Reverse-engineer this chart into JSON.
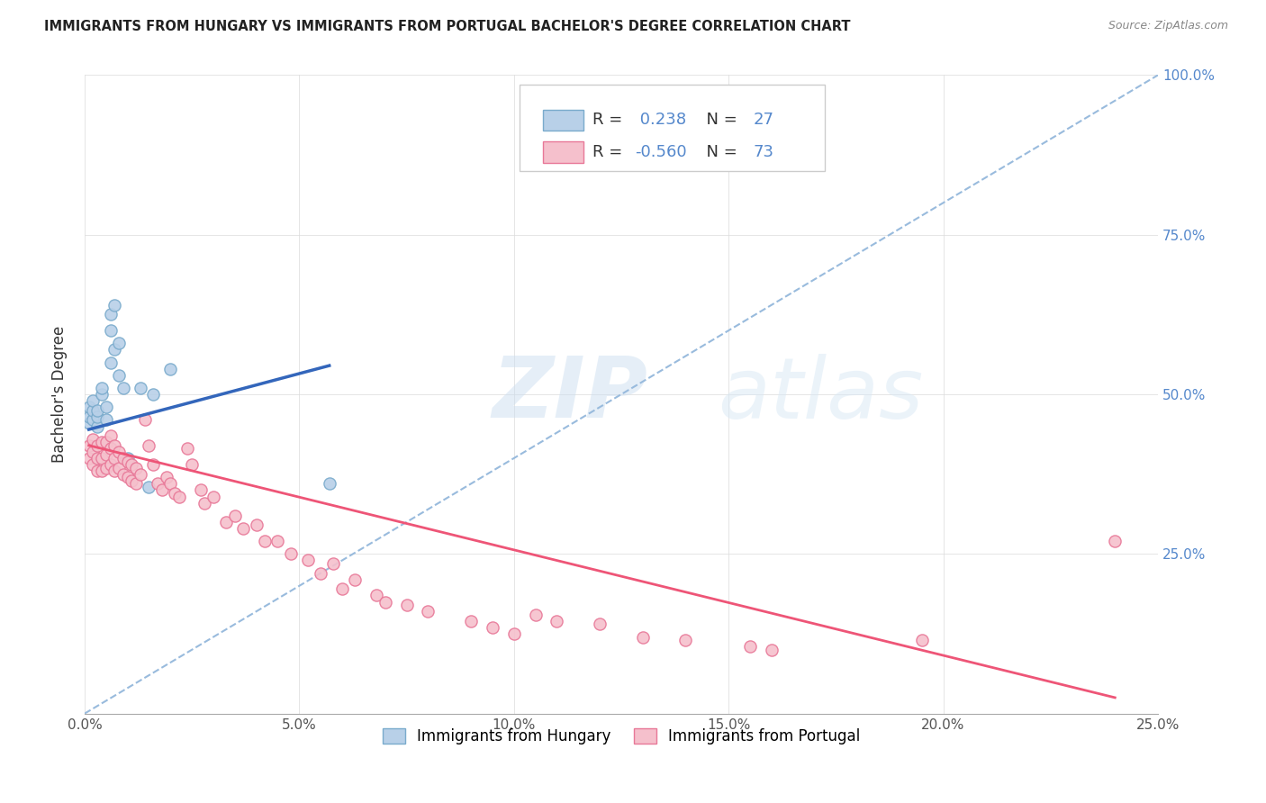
{
  "title": "IMMIGRANTS FROM HUNGARY VS IMMIGRANTS FROM PORTUGAL BACHELOR'S DEGREE CORRELATION CHART",
  "source": "Source: ZipAtlas.com",
  "ylabel": "Bachelor's Degree",
  "xlim": [
    0.0,
    0.25
  ],
  "ylim": [
    0.0,
    1.0
  ],
  "x_tick_labels": [
    "0.0%",
    "",
    "",
    "",
    "",
    "5.0%",
    "",
    "",
    "",
    "",
    "10.0%",
    "",
    "",
    "",
    "",
    "15.0%",
    "",
    "",
    "",
    "",
    "20.0%",
    "",
    "",
    "",
    "",
    "25.0%"
  ],
  "x_tick_vals": [
    0.0,
    0.01,
    0.02,
    0.03,
    0.04,
    0.05,
    0.06,
    0.07,
    0.08,
    0.09,
    0.1,
    0.11,
    0.12,
    0.13,
    0.14,
    0.15,
    0.16,
    0.17,
    0.18,
    0.19,
    0.2,
    0.21,
    0.22,
    0.23,
    0.24,
    0.25
  ],
  "x_major_ticks": [
    0.0,
    0.05,
    0.1,
    0.15,
    0.2,
    0.25
  ],
  "x_major_labels": [
    "0.0%",
    "5.0%",
    "10.0%",
    "15.0%",
    "20.0%",
    "25.0%"
  ],
  "y_tick_vals_right": [
    0.25,
    0.5,
    0.75,
    1.0
  ],
  "y_tick_labels_right": [
    "25.0%",
    "50.0%",
    "75.0%",
    "100.0%"
  ],
  "hungary_color": "#b8d0e8",
  "hungary_edge_color": "#7aabcc",
  "portugal_color": "#f5c0cc",
  "portugal_edge_color": "#e87898",
  "hungary_R": 0.238,
  "hungary_N": 27,
  "portugal_R": -0.56,
  "portugal_N": 73,
  "hungary_trend_color": "#3366bb",
  "portugal_trend_color": "#ee5577",
  "dashed_line_color": "#99bbdd",
  "watermark_zip": "ZIP",
  "watermark_atlas": "atlas",
  "background_color": "#ffffff",
  "hungary_scatter_x": [
    0.001,
    0.001,
    0.001,
    0.002,
    0.002,
    0.002,
    0.003,
    0.003,
    0.003,
    0.004,
    0.004,
    0.005,
    0.005,
    0.006,
    0.006,
    0.006,
    0.007,
    0.007,
    0.008,
    0.008,
    0.009,
    0.01,
    0.013,
    0.015,
    0.016,
    0.02,
    0.057
  ],
  "hungary_scatter_y": [
    0.455,
    0.465,
    0.48,
    0.46,
    0.475,
    0.49,
    0.45,
    0.465,
    0.475,
    0.5,
    0.51,
    0.46,
    0.48,
    0.55,
    0.6,
    0.625,
    0.57,
    0.64,
    0.53,
    0.58,
    0.51,
    0.4,
    0.51,
    0.355,
    0.5,
    0.54,
    0.36
  ],
  "portugal_scatter_x": [
    0.001,
    0.001,
    0.002,
    0.002,
    0.002,
    0.003,
    0.003,
    0.003,
    0.004,
    0.004,
    0.004,
    0.005,
    0.005,
    0.005,
    0.006,
    0.006,
    0.006,
    0.007,
    0.007,
    0.007,
    0.008,
    0.008,
    0.009,
    0.009,
    0.01,
    0.01,
    0.011,
    0.011,
    0.012,
    0.012,
    0.013,
    0.014,
    0.015,
    0.016,
    0.017,
    0.018,
    0.019,
    0.02,
    0.021,
    0.022,
    0.024,
    0.025,
    0.027,
    0.028,
    0.03,
    0.033,
    0.035,
    0.037,
    0.04,
    0.042,
    0.045,
    0.048,
    0.052,
    0.055,
    0.058,
    0.06,
    0.063,
    0.068,
    0.07,
    0.075,
    0.08,
    0.09,
    0.095,
    0.1,
    0.105,
    0.11,
    0.12,
    0.13,
    0.14,
    0.155,
    0.16,
    0.195,
    0.24
  ],
  "portugal_scatter_y": [
    0.4,
    0.42,
    0.39,
    0.41,
    0.43,
    0.38,
    0.4,
    0.42,
    0.38,
    0.4,
    0.425,
    0.385,
    0.405,
    0.425,
    0.39,
    0.415,
    0.435,
    0.38,
    0.4,
    0.42,
    0.385,
    0.41,
    0.375,
    0.4,
    0.37,
    0.395,
    0.365,
    0.39,
    0.36,
    0.385,
    0.375,
    0.46,
    0.42,
    0.39,
    0.36,
    0.35,
    0.37,
    0.36,
    0.345,
    0.34,
    0.415,
    0.39,
    0.35,
    0.33,
    0.34,
    0.3,
    0.31,
    0.29,
    0.295,
    0.27,
    0.27,
    0.25,
    0.24,
    0.22,
    0.235,
    0.195,
    0.21,
    0.185,
    0.175,
    0.17,
    0.16,
    0.145,
    0.135,
    0.125,
    0.155,
    0.145,
    0.14,
    0.12,
    0.115,
    0.105,
    0.1,
    0.115,
    0.27
  ],
  "hungary_trend_x": [
    0.001,
    0.057
  ],
  "hungary_trend_y": [
    0.445,
    0.545
  ],
  "portugal_trend_x": [
    0.001,
    0.24
  ],
  "portugal_trend_y": [
    0.42,
    0.025
  ]
}
